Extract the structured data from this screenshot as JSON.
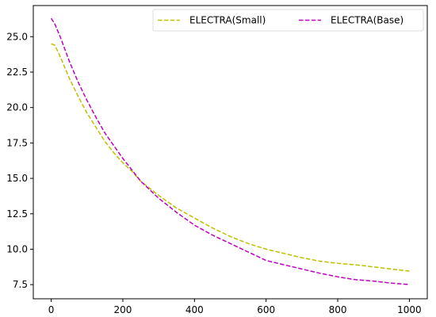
{
  "chart_data": {
    "type": "line",
    "title": "",
    "xlabel": "",
    "ylabel": "",
    "xlim": [
      -50,
      1050
    ],
    "ylim": [
      6.5,
      27.2
    ],
    "xticks": [
      0,
      200,
      400,
      600,
      800,
      1000
    ],
    "xtick_labels": [
      "0",
      "200",
      "400",
      "600",
      "800",
      "1000"
    ],
    "yticks": [
      7.5,
      10.0,
      12.5,
      15.0,
      17.5,
      20.0,
      22.5,
      25.0
    ],
    "ytick_labels": [
      "7.5",
      "10.0",
      "12.5",
      "15.0",
      "17.5",
      "20.0",
      "22.5",
      "25.0"
    ],
    "grid": false,
    "legend_position": "top-right",
    "series": [
      {
        "name": "ELECTRA(Small)",
        "color": "#bfbf00",
        "dash": "dashed",
        "x": [
          0,
          10,
          25,
          50,
          75,
          100,
          125,
          150,
          175,
          200,
          225,
          250,
          275,
          300,
          350,
          400,
          450,
          500,
          550,
          600,
          650,
          700,
          750,
          800,
          850,
          900,
          950,
          1000
        ],
        "y": [
          24.5,
          24.4,
          23.6,
          22.1,
          20.8,
          19.6,
          18.6,
          17.6,
          16.8,
          16.1,
          15.5,
          14.8,
          14.3,
          13.8,
          12.9,
          12.2,
          11.5,
          10.9,
          10.4,
          10.0,
          9.7,
          9.4,
          9.15,
          9.0,
          8.9,
          8.75,
          8.6,
          8.45
        ]
      },
      {
        "name": "ELECTRA(Base)",
        "color": "#bf00bf",
        "dash": "dashed",
        "x": [
          0,
          10,
          25,
          50,
          75,
          100,
          125,
          150,
          175,
          200,
          225,
          250,
          275,
          300,
          350,
          400,
          450,
          500,
          550,
          600,
          650,
          700,
          750,
          800,
          850,
          900,
          950,
          1000
        ],
        "y": [
          26.3,
          25.9,
          25.0,
          23.3,
          21.8,
          20.5,
          19.3,
          18.2,
          17.3,
          16.4,
          15.6,
          14.8,
          14.2,
          13.6,
          12.6,
          11.7,
          11.0,
          10.4,
          9.8,
          9.2,
          8.9,
          8.6,
          8.3,
          8.05,
          7.85,
          7.75,
          7.6,
          7.5
        ]
      }
    ]
  }
}
